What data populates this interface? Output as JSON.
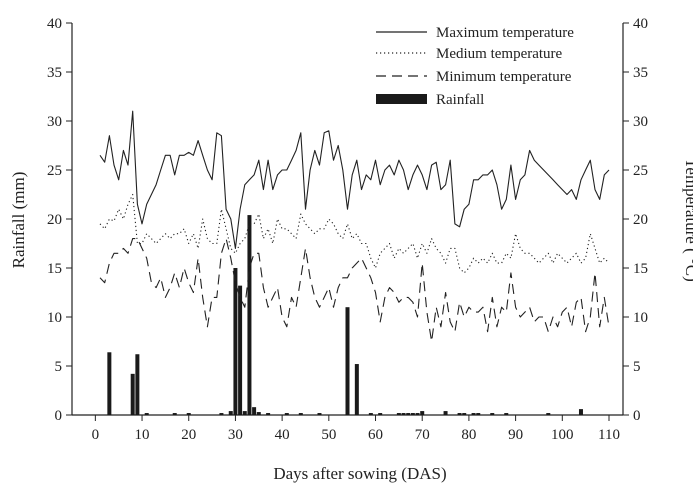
{
  "chart_data": {
    "type": "bar+line",
    "xlabel": "Days after sowing (DAS)",
    "ylabel_left": "Rainfall (mm)",
    "ylabel_right": "Temperature ( °C)",
    "xlim": [
      -5,
      113
    ],
    "ylim_left": [
      0,
      40
    ],
    "ylim_right": [
      0,
      40
    ],
    "x_ticks": [
      0,
      10,
      20,
      30,
      40,
      50,
      60,
      70,
      80,
      90,
      100,
      110
    ],
    "y_ticks": [
      0,
      5,
      10,
      15,
      20,
      25,
      30,
      35,
      40
    ],
    "grid": false,
    "legend_position": "top-right",
    "legend": [
      {
        "label": "Maximum temperature",
        "style": "solid"
      },
      {
        "label": "Medium temperature",
        "style": "dotted"
      },
      {
        "label": "Minimum temperature",
        "style": "dashed"
      },
      {
        "label": "Rainfall",
        "style": "bar"
      }
    ],
    "rainfall": {
      "name": "Rainfall",
      "x": [
        3,
        8,
        9,
        11,
        17,
        20,
        27,
        29,
        30,
        31,
        32,
        33,
        34,
        35,
        37,
        41,
        44,
        48,
        54,
        56,
        59,
        61,
        65,
        66,
        67,
        68,
        69,
        70,
        75,
        78,
        79,
        81,
        82,
        85,
        88,
        97,
        104
      ],
      "values": [
        6.4,
        4.2,
        6.2,
        0.2,
        0.2,
        0.2,
        0.2,
        0.4,
        15.0,
        13.2,
        0.4,
        20.4,
        0.8,
        0.3,
        0.2,
        0.2,
        0.2,
        0.2,
        11.0,
        5.2,
        0.2,
        0.2,
        0.2,
        0.2,
        0.2,
        0.2,
        0.2,
        0.4,
        0.4,
        0.2,
        0.2,
        0.2,
        0.2,
        0.2,
        0.2,
        0.2,
        0.6
      ]
    },
    "series": [
      {
        "name": "Maximum temperature",
        "x": [
          1,
          2,
          3,
          4,
          5,
          6,
          7,
          8,
          9,
          10,
          11,
          12,
          13,
          14,
          15,
          16,
          17,
          18,
          19,
          20,
          21,
          22,
          23,
          24,
          25,
          26,
          27,
          28,
          29,
          30,
          31,
          32,
          33,
          34,
          35,
          36,
          37,
          38,
          39,
          40,
          41,
          42,
          43,
          44,
          45,
          46,
          47,
          48,
          49,
          50,
          51,
          52,
          53,
          54,
          55,
          56,
          57,
          58,
          59,
          60,
          61,
          62,
          63,
          64,
          65,
          66,
          67,
          68,
          69,
          70,
          71,
          72,
          73,
          74,
          75,
          76,
          77,
          78,
          79,
          80,
          81,
          82,
          83,
          84,
          85,
          86,
          87,
          88,
          89,
          90,
          91,
          92,
          93,
          94,
          95,
          96,
          97,
          98,
          99,
          100,
          101,
          102,
          103,
          104,
          105,
          106,
          107,
          108,
          109,
          110
        ],
        "values": [
          26.5,
          25.8,
          28.5,
          25.5,
          24.0,
          27.0,
          25.5,
          31.0,
          21.5,
          19.5,
          21.5,
          22.5,
          23.5,
          25.0,
          26.5,
          26.5,
          24.5,
          26.5,
          26.5,
          26.8,
          26.5,
          28.0,
          26.5,
          25.0,
          24.0,
          28.8,
          28.5,
          21.0,
          20.0,
          17.0,
          21.0,
          23.5,
          24.0,
          24.5,
          26.0,
          23.0,
          26.0,
          23.0,
          24.5,
          25.0,
          25.0,
          26.0,
          27.0,
          28.8,
          21.0,
          25.0,
          27.0,
          25.5,
          28.8,
          29.0,
          26.0,
          27.5,
          25.0,
          21.0,
          24.5,
          26.0,
          23.0,
          24.5,
          24.0,
          26.0,
          23.5,
          25.0,
          25.5,
          24.5,
          26.0,
          25.0,
          23.0,
          24.5,
          25.5,
          24.5,
          23.0,
          25.5,
          25.8,
          23.0,
          23.5,
          26.0,
          19.5,
          19.2,
          21.0,
          21.5,
          24.0,
          24.0,
          24.5,
          24.5,
          25.0,
          23.5,
          21.0,
          22.0,
          25.5,
          22.0,
          24.0,
          24.5,
          27.0,
          26.0,
          25.5,
          25.0,
          24.5,
          24.0,
          23.5,
          23.0,
          22.5,
          23.0,
          22.0,
          24.0,
          25.0,
          26.0,
          23.0,
          22.0,
          24.5,
          25.0
        ]
      },
      {
        "name": "Medium temperature",
        "x": [
          1,
          2,
          3,
          4,
          5,
          6,
          7,
          8,
          9,
          10,
          11,
          12,
          13,
          14,
          15,
          16,
          17,
          18,
          19,
          20,
          21,
          22,
          23,
          24,
          25,
          26,
          27,
          28,
          29,
          30,
          31,
          32,
          33,
          34,
          35,
          36,
          37,
          38,
          39,
          40,
          41,
          42,
          43,
          44,
          45,
          46,
          47,
          48,
          49,
          50,
          51,
          52,
          53,
          54,
          55,
          56,
          57,
          58,
          59,
          60,
          61,
          62,
          63,
          64,
          65,
          66,
          67,
          68,
          69,
          70,
          71,
          72,
          73,
          74,
          75,
          76,
          77,
          78,
          79,
          80,
          81,
          82,
          83,
          84,
          85,
          86,
          87,
          88,
          89,
          90,
          91,
          92,
          93,
          94,
          95,
          96,
          97,
          98,
          99,
          100,
          101,
          102,
          103,
          104,
          105,
          106,
          107,
          108,
          109,
          110
        ],
        "values": [
          19.5,
          19.0,
          20.0,
          19.8,
          21.0,
          20.0,
          21.5,
          22.5,
          17.5,
          17.5,
          18.5,
          18.0,
          17.5,
          18.0,
          18.5,
          18.0,
          18.5,
          18.5,
          19.0,
          17.5,
          18.5,
          17.0,
          20.0,
          18.0,
          17.5,
          17.5,
          21.0,
          19.0,
          17.0,
          16.5,
          17.5,
          18.0,
          19.5,
          19.5,
          20.5,
          18.0,
          19.0,
          17.5,
          20.0,
          19.0,
          19.0,
          18.5,
          18.0,
          20.5,
          19.5,
          19.0,
          18.5,
          19.0,
          19.0,
          20.0,
          19.5,
          18.5,
          18.0,
          19.5,
          18.0,
          18.5,
          17.5,
          17.5,
          16.0,
          15.0,
          16.5,
          17.0,
          17.5,
          16.0,
          17.0,
          16.5,
          17.0,
          17.5,
          16.0,
          17.5,
          16.5,
          18.0,
          17.0,
          16.5,
          15.5,
          17.0,
          17.0,
          15.0,
          14.5,
          15.0,
          16.0,
          15.5,
          16.0,
          15.5,
          16.5,
          15.5,
          15.5,
          16.5,
          16.0,
          18.5,
          17.0,
          16.5,
          16.5,
          16.0,
          15.5,
          16.0,
          16.5,
          15.5,
          16.5,
          16.0,
          15.5,
          16.0,
          16.5,
          15.5,
          16.0,
          18.5,
          17.0,
          15.5,
          16.0,
          15.5
        ]
      },
      {
        "name": "Minimum temperature",
        "x": [
          1,
          2,
          3,
          4,
          5,
          6,
          7,
          8,
          9,
          10,
          11,
          12,
          13,
          14,
          15,
          16,
          17,
          18,
          19,
          20,
          21,
          22,
          23,
          24,
          25,
          26,
          27,
          28,
          29,
          30,
          31,
          32,
          33,
          34,
          35,
          36,
          37,
          38,
          39,
          40,
          41,
          42,
          43,
          44,
          45,
          46,
          47,
          48,
          49,
          50,
          51,
          52,
          53,
          54,
          55,
          56,
          57,
          58,
          59,
          60,
          61,
          62,
          63,
          64,
          65,
          66,
          67,
          68,
          69,
          70,
          71,
          72,
          73,
          74,
          75,
          76,
          77,
          78,
          79,
          80,
          81,
          82,
          83,
          84,
          85,
          86,
          87,
          88,
          89,
          90,
          91,
          92,
          93,
          94,
          95,
          96,
          97,
          98,
          99,
          100,
          101,
          102,
          103,
          104,
          105,
          106,
          107,
          108,
          109,
          110
        ],
        "values": [
          14.0,
          13.5,
          15.5,
          16.5,
          16.5,
          17.0,
          16.5,
          18.0,
          18.0,
          17.0,
          16.0,
          13.5,
          13.0,
          14.0,
          12.0,
          13.0,
          14.5,
          13.0,
          15.0,
          13.5,
          12.5,
          16.0,
          12.0,
          9.0,
          12.0,
          12.0,
          16.5,
          18.0,
          16.0,
          13.5,
          12.0,
          11.0,
          15.0,
          16.5,
          16.5,
          13.0,
          11.0,
          12.0,
          13.0,
          10.0,
          9.0,
          12.0,
          11.0,
          14.0,
          17.0,
          14.0,
          12.0,
          11.0,
          12.0,
          13.0,
          11.0,
          13.0,
          14.0,
          14.0,
          15.0,
          15.5,
          16.0,
          15.0,
          14.0,
          12.5,
          9.5,
          12.0,
          13.0,
          12.5,
          11.5,
          12.0,
          12.0,
          11.5,
          10.0,
          15.5,
          10.5,
          7.5,
          11.0,
          9.0,
          12.5,
          9.5,
          8.5,
          11.5,
          10.0,
          11.0,
          10.5,
          10.5,
          11.0,
          8.5,
          12.0,
          9.0,
          11.0,
          10.5,
          14.5,
          11.0,
          10.0,
          10.5,
          11.0,
          9.5,
          10.0,
          10.0,
          8.5,
          10.0,
          9.0,
          10.5,
          11.0,
          9.0,
          11.5,
          12.0,
          8.5,
          10.0,
          14.5,
          9.0,
          12.0,
          9.0
        ]
      }
    ]
  }
}
